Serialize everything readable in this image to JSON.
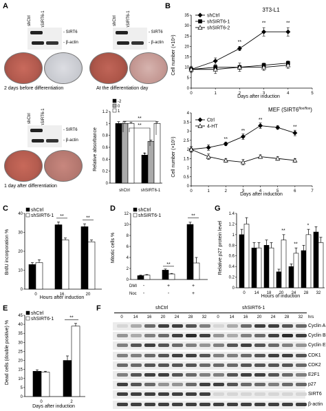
{
  "panels": {
    "A": "A",
    "B": "B",
    "C": "C",
    "D": "D",
    "E": "E",
    "F": "F",
    "G": "G"
  },
  "common": {
    "shCtrl": "shCtrl",
    "shSIRT6": "shSIRT6-1",
    "sirt6": "- SIRT6",
    "actin": "- β-actin",
    "star2": "**",
    "star1": "*"
  },
  "panelA": {
    "cap1": "2 days before differentiation",
    "cap2": "At the differentiation day",
    "cap3": "1 day after differentiation",
    "bar": {
      "ylabel": "Relative absorbance",
      "legend": [
        "-2",
        "0",
        "1"
      ],
      "yticks": [
        "0",
        "0.2",
        "0.4",
        "0.6",
        "0.8",
        "1",
        "1.2"
      ],
      "categories": [
        "shCtrl",
        "shSIRT6-1"
      ]
    }
  },
  "panelB1": {
    "title": "3T3-L1",
    "xlabel": "Days after induction",
    "ylabel": "Cell number (×10⁴)",
    "legend": [
      "shCtrl",
      "shSIRT6-1",
      "shSIRT6-2"
    ],
    "xticks": [
      "0",
      "1",
      "2",
      "3",
      "4",
      "5"
    ],
    "yticks": [
      "0",
      "5",
      "10",
      "15",
      "20",
      "25",
      "30",
      "35"
    ]
  },
  "panelB2": {
    "title": "MEF (SIRT6",
    "title_sup": "flox/flox",
    "xlabel": "Days after induction",
    "ylabel": "Cell number (×10⁵)",
    "legend": [
      "Ctrl",
      "4-HT"
    ],
    "xticks": [
      "0",
      "1",
      "2",
      "3",
      "4",
      "5",
      "6",
      "7"
    ],
    "yticks": [
      "0",
      "0.5",
      "1",
      "1.5",
      "2",
      "2.5",
      "3",
      "3.5",
      "4"
    ]
  },
  "panelC": {
    "ylabel": "BrdU incorporation %",
    "xlabel": "Hours after induction",
    "xticks": [
      "0",
      "16",
      "20"
    ],
    "yticks": [
      "0",
      "10",
      "20",
      "30",
      "40"
    ]
  },
  "panelD": {
    "ylabel": "Mitotic cells %",
    "yticks": [
      "0",
      "2",
      "4",
      "6",
      "8",
      "10",
      "12"
    ],
    "row1": "DMI",
    "row2": "Noc",
    "row1_vals": [
      "-",
      "+",
      "+"
    ],
    "row2_vals": [
      "-",
      "-",
      "+"
    ]
  },
  "panelE": {
    "ylabel": "Dead cells (double positive) %",
    "xlabel": "Days after induction",
    "xticks": [
      "0",
      "2"
    ],
    "yticks": [
      "0",
      "5",
      "10",
      "15",
      "20",
      "25",
      "30",
      "35",
      "40",
      "45"
    ]
  },
  "panelF": {
    "hrs": "hrs",
    "times": [
      "0",
      "14",
      "16",
      "20",
      "24",
      "28",
      "32"
    ],
    "proteins": [
      "Cyclin A",
      "Cyclin B",
      "Cyclin E",
      "CDK1",
      "CDK2",
      "E2F1",
      "p27",
      "SIRT6",
      "β-actin"
    ]
  },
  "panelG": {
    "ylabel": "Relative p27 protein level",
    "xlabel": "Hours of induction",
    "xticks": [
      "0",
      "14",
      "18",
      "20",
      "24",
      "28",
      "32"
    ],
    "yticks": [
      "0",
      "0.2",
      "0.4",
      "0.6",
      "0.8",
      "1",
      "1.2",
      "1.4"
    ]
  },
  "chart_data": [
    {
      "type": "bar",
      "id": "A",
      "categories": [
        "shCtrl",
        "shSIRT6-1"
      ],
      "ylabel": "Relative absorbance",
      "ylim": [
        0,
        1.2
      ],
      "series": [
        {
          "name": "-2",
          "values": [
            1.0,
            0.47
          ],
          "err": [
            0.03,
            0.03
          ]
        },
        {
          "name": "0",
          "values": [
            1.0,
            0.7
          ],
          "err": [
            0.03,
            0.02
          ]
        },
        {
          "name": "1",
          "values": [
            1.0,
            1.0
          ],
          "err": [
            0.02,
            0.03
          ]
        }
      ]
    },
    {
      "type": "line",
      "id": "B1",
      "x": [
        0,
        1,
        2,
        3,
        4
      ],
      "ylim": [
        0,
        35
      ],
      "xlim": [
        0,
        5
      ],
      "series": [
        {
          "name": "shCtrl",
          "values": [
            9,
            13,
            19,
            27,
            27
          ],
          "err": [
            1,
            1.5,
            1,
            2,
            2
          ],
          "marker": "diamond"
        },
        {
          "name": "shSIRT6-1",
          "values": [
            9,
            10,
            10,
            11,
            12
          ],
          "err": [
            1,
            1,
            1,
            1,
            1
          ],
          "marker": "square"
        },
        {
          "name": "shSIRT6-2",
          "values": [
            9,
            9,
            10,
            10,
            11
          ],
          "err": [
            1.5,
            2,
            2,
            1.5,
            1.5
          ],
          "marker": "triangle"
        }
      ]
    },
    {
      "type": "line",
      "id": "B2",
      "x": [
        0,
        1,
        2,
        3,
        4,
        5,
        6
      ],
      "ylim": [
        0,
        4
      ],
      "xlim": [
        0,
        7
      ],
      "series": [
        {
          "name": "Ctrl",
          "values": [
            2.0,
            2.1,
            2.3,
            2.7,
            3.3,
            3.2,
            2.9
          ],
          "err": [
            0.15,
            0.15,
            0.1,
            0.15,
            0.15,
            0.1,
            0.15
          ],
          "marker": "diamond"
        },
        {
          "name": "4-HT",
          "values": [
            2.0,
            1.6,
            1.4,
            1.3,
            1.6,
            1.5,
            1.4
          ],
          "err": [
            0.15,
            0.15,
            0.1,
            0.15,
            0.1,
            0.1,
            0.1
          ],
          "marker": "triangle"
        }
      ]
    },
    {
      "type": "bar",
      "id": "C",
      "categories": [
        "0",
        "16",
        "20"
      ],
      "ylim": [
        0,
        40
      ],
      "series": [
        {
          "name": "shCtrl",
          "values": [
            13,
            34,
            33
          ],
          "err": [
            1,
            1.5,
            1.5
          ]
        },
        {
          "name": "shSIRT6-1",
          "values": [
            14,
            26,
            25
          ],
          "err": [
            1.5,
            1,
            1
          ]
        }
      ]
    },
    {
      "type": "bar",
      "id": "D",
      "categories": [
        "1",
        "2",
        "3"
      ],
      "ylim": [
        0,
        12
      ],
      "series": [
        {
          "name": "shCtrl",
          "values": [
            0.7,
            1.7,
            10
          ],
          "err": [
            0.1,
            0.2,
            0.4
          ]
        },
        {
          "name": "shSIRT6-1",
          "values": [
            0.8,
            1.0,
            3.0
          ],
          "err": [
            0.1,
            0.1,
            1.0
          ]
        }
      ]
    },
    {
      "type": "bar",
      "id": "E",
      "categories": [
        "0",
        "2"
      ],
      "ylim": [
        0,
        45
      ],
      "series": [
        {
          "name": "shCtrl",
          "values": [
            14,
            20
          ],
          "err": [
            0.8,
            2.5
          ]
        },
        {
          "name": "shSIRT6-1",
          "values": [
            13.5,
            39
          ],
          "err": [
            0.5,
            1.5
          ]
        }
      ]
    },
    {
      "type": "bar",
      "id": "G",
      "categories": [
        "0",
        "14",
        "18",
        "20",
        "24",
        "28",
        "32"
      ],
      "ylim": [
        0,
        1.4
      ],
      "series": [
        {
          "name": "shCtrl",
          "values": [
            1.0,
            0.75,
            0.8,
            0.3,
            0.4,
            0.7,
            1.05
          ],
          "err": [
            0.1,
            0.1,
            0.1,
            0.05,
            0.05,
            0.1,
            0.1
          ]
        },
        {
          "name": "shSIRT6-1",
          "values": [
            1.2,
            0.75,
            0.75,
            0.9,
            0.65,
            1.0,
            0.85
          ],
          "err": [
            0.12,
            0.1,
            0.1,
            0.1,
            0.1,
            0.1,
            0.1
          ]
        }
      ]
    }
  ]
}
